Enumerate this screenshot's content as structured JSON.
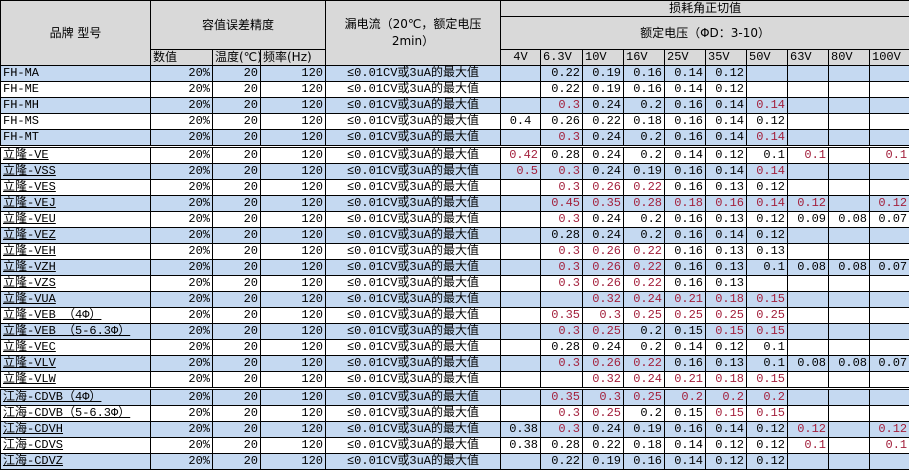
{
  "header": {
    "brand_model": "品牌 型号",
    "tolerance_group": "容值误差精度",
    "tolerance_cols": [
      "数值",
      "温度(℃)",
      "频率(Hz)"
    ],
    "leakage": "漏电流（20℃，额定电压2min）",
    "dissipation": "损耗角正切值",
    "rated_voltage": "额定电压（ΦD：3-10）",
    "voltages": [
      "4V",
      "6.3V",
      "10V",
      "16V",
      "25V",
      "35V",
      "50V",
      "63V",
      "80V",
      "100V"
    ]
  },
  "colors": {
    "header_bg": "#d9d9d9",
    "row_alt_bg": "#c5d9f1",
    "highlight_text": "#a3203c"
  },
  "rows": [
    {
      "name": "FH-MA",
      "tol": "20%",
      "temp": "20",
      "freq": "120",
      "leak": "≤0.01CV或3uA的最大值",
      "v": [
        "",
        "0.22",
        "0.19",
        "0.16",
        "0.14",
        "0.12",
        "",
        "",
        "",
        ""
      ],
      "red": []
    },
    {
      "name": "FH-ME",
      "tol": "20%",
      "temp": "20",
      "freq": "120",
      "leak": "≤0.01CV或3uA的最大值",
      "v": [
        "",
        "0.22",
        "0.19",
        "0.16",
        "0.14",
        "0.12",
        "",
        "",
        "",
        ""
      ],
      "red": []
    },
    {
      "name": "FH-MH",
      "tol": "20%",
      "temp": "20",
      "freq": "120",
      "leak": "≤0.01CV或3uA的最大值",
      "v": [
        "",
        "0.3",
        "0.24",
        "0.2",
        "0.16",
        "0.14",
        "0.14",
        "",
        "",
        ""
      ],
      "red": [
        1,
        6
      ]
    },
    {
      "name": "FH-MS",
      "tol": "20%",
      "temp": "20",
      "freq": "120",
      "leak": "≤0.01CV或3uA的最大值",
      "v": [
        "0.4",
        "0.26",
        "0.22",
        "0.18",
        "0.16",
        "0.14",
        "0.12",
        "",
        "",
        ""
      ],
      "red": []
    },
    {
      "name": "FH-MT",
      "tol": "20%",
      "temp": "20",
      "freq": "120",
      "leak": "≤0.01CV或3uA的最大值",
      "v": [
        "",
        "0.3",
        "0.24",
        "0.2",
        "0.16",
        "0.14",
        "0.14",
        "",
        "",
        ""
      ],
      "red": [
        1,
        6
      ]
    },
    {
      "name": "立隆-VE",
      "tol": "20%",
      "temp": "20",
      "freq": "120",
      "leak": "≤0.01CV或3uA的最大值",
      "v": [
        "0.42",
        "0.28",
        "0.24",
        "0.2",
        "0.14",
        "0.12",
        "0.1",
        "0.1",
        "",
        "0.1"
      ],
      "red": [
        0,
        7,
        9
      ]
    },
    {
      "name": "立隆-VSS",
      "tol": "20%",
      "temp": "20",
      "freq": "120",
      "leak": "≤0.01CV或3uA的最大值",
      "v": [
        "0.5",
        "0.3",
        "0.24",
        "0.19",
        "0.16",
        "0.14",
        "0.14",
        "",
        "",
        ""
      ],
      "red": [
        0,
        1,
        6
      ]
    },
    {
      "name": "立隆-VES",
      "tol": "20%",
      "temp": "20",
      "freq": "120",
      "leak": "≤0.01CV或3uA的最大值",
      "v": [
        "",
        "0.3",
        "0.26",
        "0.22",
        "0.16",
        "0.13",
        "0.12",
        "",
        "",
        ""
      ],
      "red": [
        1,
        2,
        3
      ]
    },
    {
      "name": "立隆-VEJ",
      "tol": "20%",
      "temp": "20",
      "freq": "120",
      "leak": "≤0.01CV或3uA的最大值",
      "v": [
        "",
        "0.45",
        "0.35",
        "0.28",
        "0.18",
        "0.16",
        "0.14",
        "0.12",
        "",
        "0.12"
      ],
      "red": [
        1,
        2,
        3,
        4,
        5,
        6,
        7,
        9
      ]
    },
    {
      "name": "立隆-VEU",
      "tol": "20%",
      "temp": "20",
      "freq": "120",
      "leak": "≤0.01CV或3uA的最大值",
      "v": [
        "",
        "0.3",
        "0.24",
        "0.2",
        "0.16",
        "0.13",
        "0.12",
        "0.09",
        "0.08",
        "0.07"
      ],
      "red": [
        1
      ]
    },
    {
      "name": "立隆-VEZ",
      "tol": "20%",
      "temp": "20",
      "freq": "120",
      "leak": "≤0.01CV或3uA的最大值",
      "v": [
        "",
        "0.28",
        "0.24",
        "0.2",
        "0.16",
        "0.14",
        "0.12",
        "",
        "",
        ""
      ],
      "red": []
    },
    {
      "name": "立隆-VEH",
      "tol": "20%",
      "temp": "20",
      "freq": "120",
      "leak": "≤0.01CV或3uA的最大值",
      "v": [
        "",
        "0.3",
        "0.26",
        "0.22",
        "0.16",
        "0.13",
        "0.13",
        "",
        "",
        ""
      ],
      "red": [
        1,
        2,
        3
      ]
    },
    {
      "name": "立隆-VZH",
      "tol": "20%",
      "temp": "20",
      "freq": "120",
      "leak": "≤0.01CV或3uA的最大值",
      "v": [
        "",
        "0.3",
        "0.26",
        "0.22",
        "0.16",
        "0.13",
        "0.1",
        "0.08",
        "0.08",
        "0.07"
      ],
      "red": [
        1,
        2,
        3
      ]
    },
    {
      "name": "立隆-VZS",
      "tol": "20%",
      "temp": "20",
      "freq": "120",
      "leak": "≤0.01CV或3uA的最大值",
      "v": [
        "",
        "0.3",
        "0.26",
        "0.22",
        "0.16",
        "0.13",
        "",
        "",
        "",
        ""
      ],
      "red": [
        1,
        2,
        3
      ]
    },
    {
      "name": "立隆-VUA",
      "tol": "20%",
      "temp": "20",
      "freq": "120",
      "leak": "≤0.01CV或3uA的最大值",
      "v": [
        "",
        "",
        "0.32",
        "0.24",
        "0.21",
        "0.18",
        "0.15",
        "",
        "",
        ""
      ],
      "red": [
        2,
        3,
        4,
        5,
        6
      ]
    },
    {
      "name": "立隆-VEB （4Φ）",
      "tol": "20%",
      "temp": "20",
      "freq": "120",
      "leak": "≤0.01CV或3uA的最大值",
      "v": [
        "",
        "0.35",
        "0.3",
        "0.25",
        "0.25",
        "0.25",
        "0.25",
        "",
        "",
        ""
      ],
      "red": [
        1,
        2,
        3,
        4,
        5,
        6
      ]
    },
    {
      "name": "立隆-VEB （5-6.3Φ）",
      "tol": "20%",
      "temp": "20",
      "freq": "120",
      "leak": "≤0.01CV或3uA的最大值",
      "v": [
        "",
        "0.3",
        "0.25",
        "0.2",
        "0.15",
        "0.15",
        "0.15",
        "",
        "",
        ""
      ],
      "red": [
        1,
        2,
        5,
        6
      ]
    },
    {
      "name": "立隆-VEC",
      "tol": "20%",
      "temp": "20",
      "freq": "120",
      "leak": "≤0.01CV或3uA的最大值",
      "v": [
        "",
        "0.28",
        "0.24",
        "0.2",
        "0.14",
        "0.12",
        "0.1",
        "",
        "",
        ""
      ],
      "red": []
    },
    {
      "name": "立隆-VLV",
      "tol": "20%",
      "temp": "20",
      "freq": "120",
      "leak": "≤0.01CV或3uA的最大值",
      "v": [
        "",
        "0.3",
        "0.26",
        "0.22",
        "0.16",
        "0.13",
        "0.1",
        "0.08",
        "0.08",
        "0.07"
      ],
      "red": [
        1,
        2,
        3
      ]
    },
    {
      "name": "立隆-VLW",
      "tol": "20%",
      "temp": "20",
      "freq": "120",
      "leak": "≤0.01CV或3uA的最大值",
      "v": [
        "",
        "",
        "0.32",
        "0.24",
        "0.21",
        "0.18",
        "0.15",
        "",
        "",
        ""
      ],
      "red": [
        2,
        3,
        4,
        5,
        6
      ]
    },
    {
      "name": "江海-CDVB（4Φ）",
      "tol": "20%",
      "temp": "20",
      "freq": "120",
      "leak": "≤0.01CV或3uA的最大值",
      "v": [
        "",
        "0.35",
        "0.3",
        "0.25",
        "0.2",
        "0.2",
        "0.2",
        "",
        "",
        ""
      ],
      "red": [
        1,
        2,
        3,
        4,
        5,
        6
      ]
    },
    {
      "name": "江海-CDVB（5-6.3Φ）",
      "tol": "20%",
      "temp": "20",
      "freq": "120",
      "leak": "≤0.01CV或3uA的最大值",
      "v": [
        "",
        "0.3",
        "0.25",
        "0.2",
        "0.15",
        "0.15",
        "0.15",
        "",
        "",
        ""
      ],
      "red": [
        1,
        2,
        5,
        6
      ]
    },
    {
      "name": "江海-CDVH",
      "tol": "20%",
      "temp": "20",
      "freq": "120",
      "leak": "≤0.01CV或3uA的最大值",
      "v": [
        "0.38",
        "0.3",
        "0.24",
        "0.19",
        "0.16",
        "0.14",
        "0.12",
        "0.12",
        "",
        "0.12"
      ],
      "red": [
        1,
        7,
        9
      ]
    },
    {
      "name": "江海-CDVS",
      "tol": "20%",
      "temp": "20",
      "freq": "120",
      "leak": "≤0.01CV或3uA的最大值",
      "v": [
        "0.38",
        "0.28",
        "0.22",
        "0.18",
        "0.14",
        "0.12",
        "0.12",
        "0.1",
        "",
        "0.1"
      ],
      "red": [
        7,
        9
      ]
    },
    {
      "name": "江海-CDVZ",
      "tol": "20%",
      "temp": "20",
      "freq": "120",
      "leak": "≤0.01CV或3uA的最大值",
      "v": [
        "",
        "0.22",
        "0.19",
        "0.16",
        "0.14",
        "0.12",
        "0.12",
        "",
        "",
        ""
      ],
      "red": []
    }
  ]
}
